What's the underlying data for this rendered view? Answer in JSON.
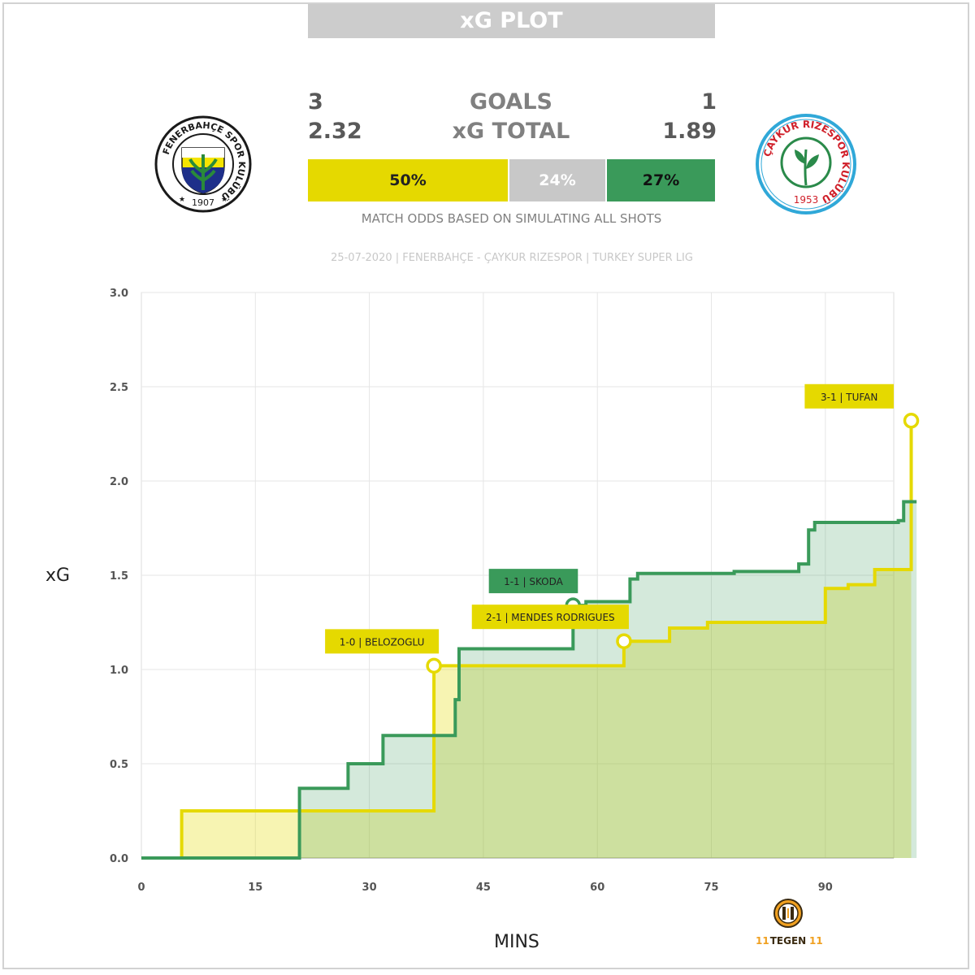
{
  "header": {
    "title": "xG PLOT"
  },
  "match": {
    "home_team": "Fenerbahçe",
    "away_team": "Çaykur Rizespor",
    "home_goals": "3",
    "away_goals": "1",
    "goals_label": "GOALS",
    "home_xg": "2.32",
    "away_xg": "1.89",
    "xg_label": "xG TOTAL",
    "odds": {
      "home": "50%",
      "draw": "24%",
      "away": "27%"
    },
    "odds_values": {
      "home": 50,
      "draw": 24,
      "away": 27
    },
    "odds_note": "MATCH ODDS BASED ON SIMULATING ALL SHOTS",
    "meta": "25-07-2020 | FENERBAHÇE - ÇAYKUR RIZESPOR | TURKEY SUPER LIG"
  },
  "crests": {
    "home": {
      "ring_text": "FENERBAHÇE SPOR KULÜBÜ",
      "year": "1907"
    },
    "away": {
      "ring_text": "ÇAYKUR RIZESPOR KULÜBÜ",
      "year": "1953"
    }
  },
  "colors": {
    "home": "#e5d900",
    "away": "#3a9a5a",
    "draw": "#c8c8c8"
  },
  "brand": {
    "text": "TEGEN"
  },
  "chart_data": {
    "type": "line",
    "xlabel": "MINS",
    "ylabel": "xG",
    "xlim": [
      0,
      99
    ],
    "ylim": [
      0,
      3
    ],
    "x_ticks": [
      0,
      15,
      30,
      45,
      60,
      75,
      90
    ],
    "y_ticks": [
      "0.0",
      "0.5",
      "1.0",
      "1.5",
      "2.0",
      "2.5",
      "3.0"
    ],
    "step": true,
    "grid": true,
    "series": [
      {
        "team": "home",
        "color": "#e5d900",
        "points": [
          [
            0,
            0
          ],
          [
            5.3,
            0.25
          ],
          [
            38.5,
            1.02
          ],
          [
            41.3,
            1.02
          ],
          [
            63.5,
            1.15
          ],
          [
            69.5,
            1.22
          ],
          [
            74.5,
            1.25
          ],
          [
            90,
            1.43
          ],
          [
            93,
            1.45
          ],
          [
            96.5,
            1.53
          ],
          [
            101.3,
            2.32
          ]
        ]
      },
      {
        "team": "away",
        "color": "#3a9a5a",
        "points": [
          [
            0,
            0
          ],
          [
            20.8,
            0.37
          ],
          [
            27.2,
            0.5
          ],
          [
            31.8,
            0.65
          ],
          [
            41.3,
            0.84
          ],
          [
            41.8,
            1.11
          ],
          [
            56.8,
            1.34
          ],
          [
            58.5,
            1.36
          ],
          [
            64.3,
            1.48
          ],
          [
            65.3,
            1.51
          ],
          [
            78,
            1.52
          ],
          [
            86.5,
            1.56
          ],
          [
            87.8,
            1.74
          ],
          [
            88.6,
            1.78
          ],
          [
            99.6,
            1.79
          ],
          [
            100.3,
            1.89
          ],
          [
            102,
            1.89
          ]
        ]
      }
    ],
    "annotations": [
      {
        "label": "1-0 | BELOZOGLU",
        "team": "home",
        "x": 38.5,
        "y": 1.02
      },
      {
        "label": "1-1 | SKODA",
        "team": "away",
        "x": 56.8,
        "y": 1.34
      },
      {
        "label": "2-1 | MENDES RODRIGUES",
        "team": "home",
        "x": 63.5,
        "y": 1.15
      },
      {
        "label": "3-1 | TUFAN",
        "team": "home",
        "x": 101.3,
        "y": 2.32
      }
    ]
  }
}
